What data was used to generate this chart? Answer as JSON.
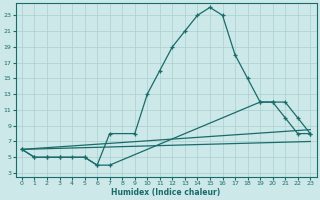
{
  "xlabel": "Humidex (Indice chaleur)",
  "bg_color": "#cce8e8",
  "line_color": "#1a6b6b",
  "grid_color": "#aacfcf",
  "xlim": [
    -0.5,
    23.5
  ],
  "ylim": [
    2.5,
    24.5
  ],
  "xticks": [
    0,
    1,
    2,
    3,
    4,
    5,
    6,
    7,
    8,
    9,
    10,
    11,
    12,
    13,
    14,
    15,
    16,
    17,
    18,
    19,
    20,
    21,
    22,
    23
  ],
  "yticks": [
    3,
    5,
    7,
    9,
    11,
    13,
    15,
    17,
    19,
    21,
    23
  ],
  "series": [
    {
      "x": [
        0,
        1,
        2,
        3,
        5,
        6,
        7,
        9,
        10,
        11,
        12,
        13,
        14,
        15,
        16,
        17,
        18,
        19,
        20,
        21,
        22,
        23
      ],
      "y": [
        6,
        5,
        5,
        5,
        5,
        4,
        8,
        8,
        13,
        16,
        19,
        21,
        23,
        24,
        23,
        18,
        15,
        12,
        12,
        10,
        8,
        8
      ],
      "markers": true
    },
    {
      "x": [
        0,
        1,
        2,
        3,
        4,
        5,
        6,
        7,
        19,
        20,
        21,
        22,
        23
      ],
      "y": [
        6,
        5,
        5,
        5,
        5,
        5,
        4,
        4,
        12,
        12,
        12,
        10,
        8
      ],
      "markers": true
    },
    {
      "x": [
        0,
        23
      ],
      "y": [
        6,
        8.5
      ],
      "markers": false
    },
    {
      "x": [
        0,
        23
      ],
      "y": [
        6,
        7.0
      ],
      "markers": false
    }
  ]
}
